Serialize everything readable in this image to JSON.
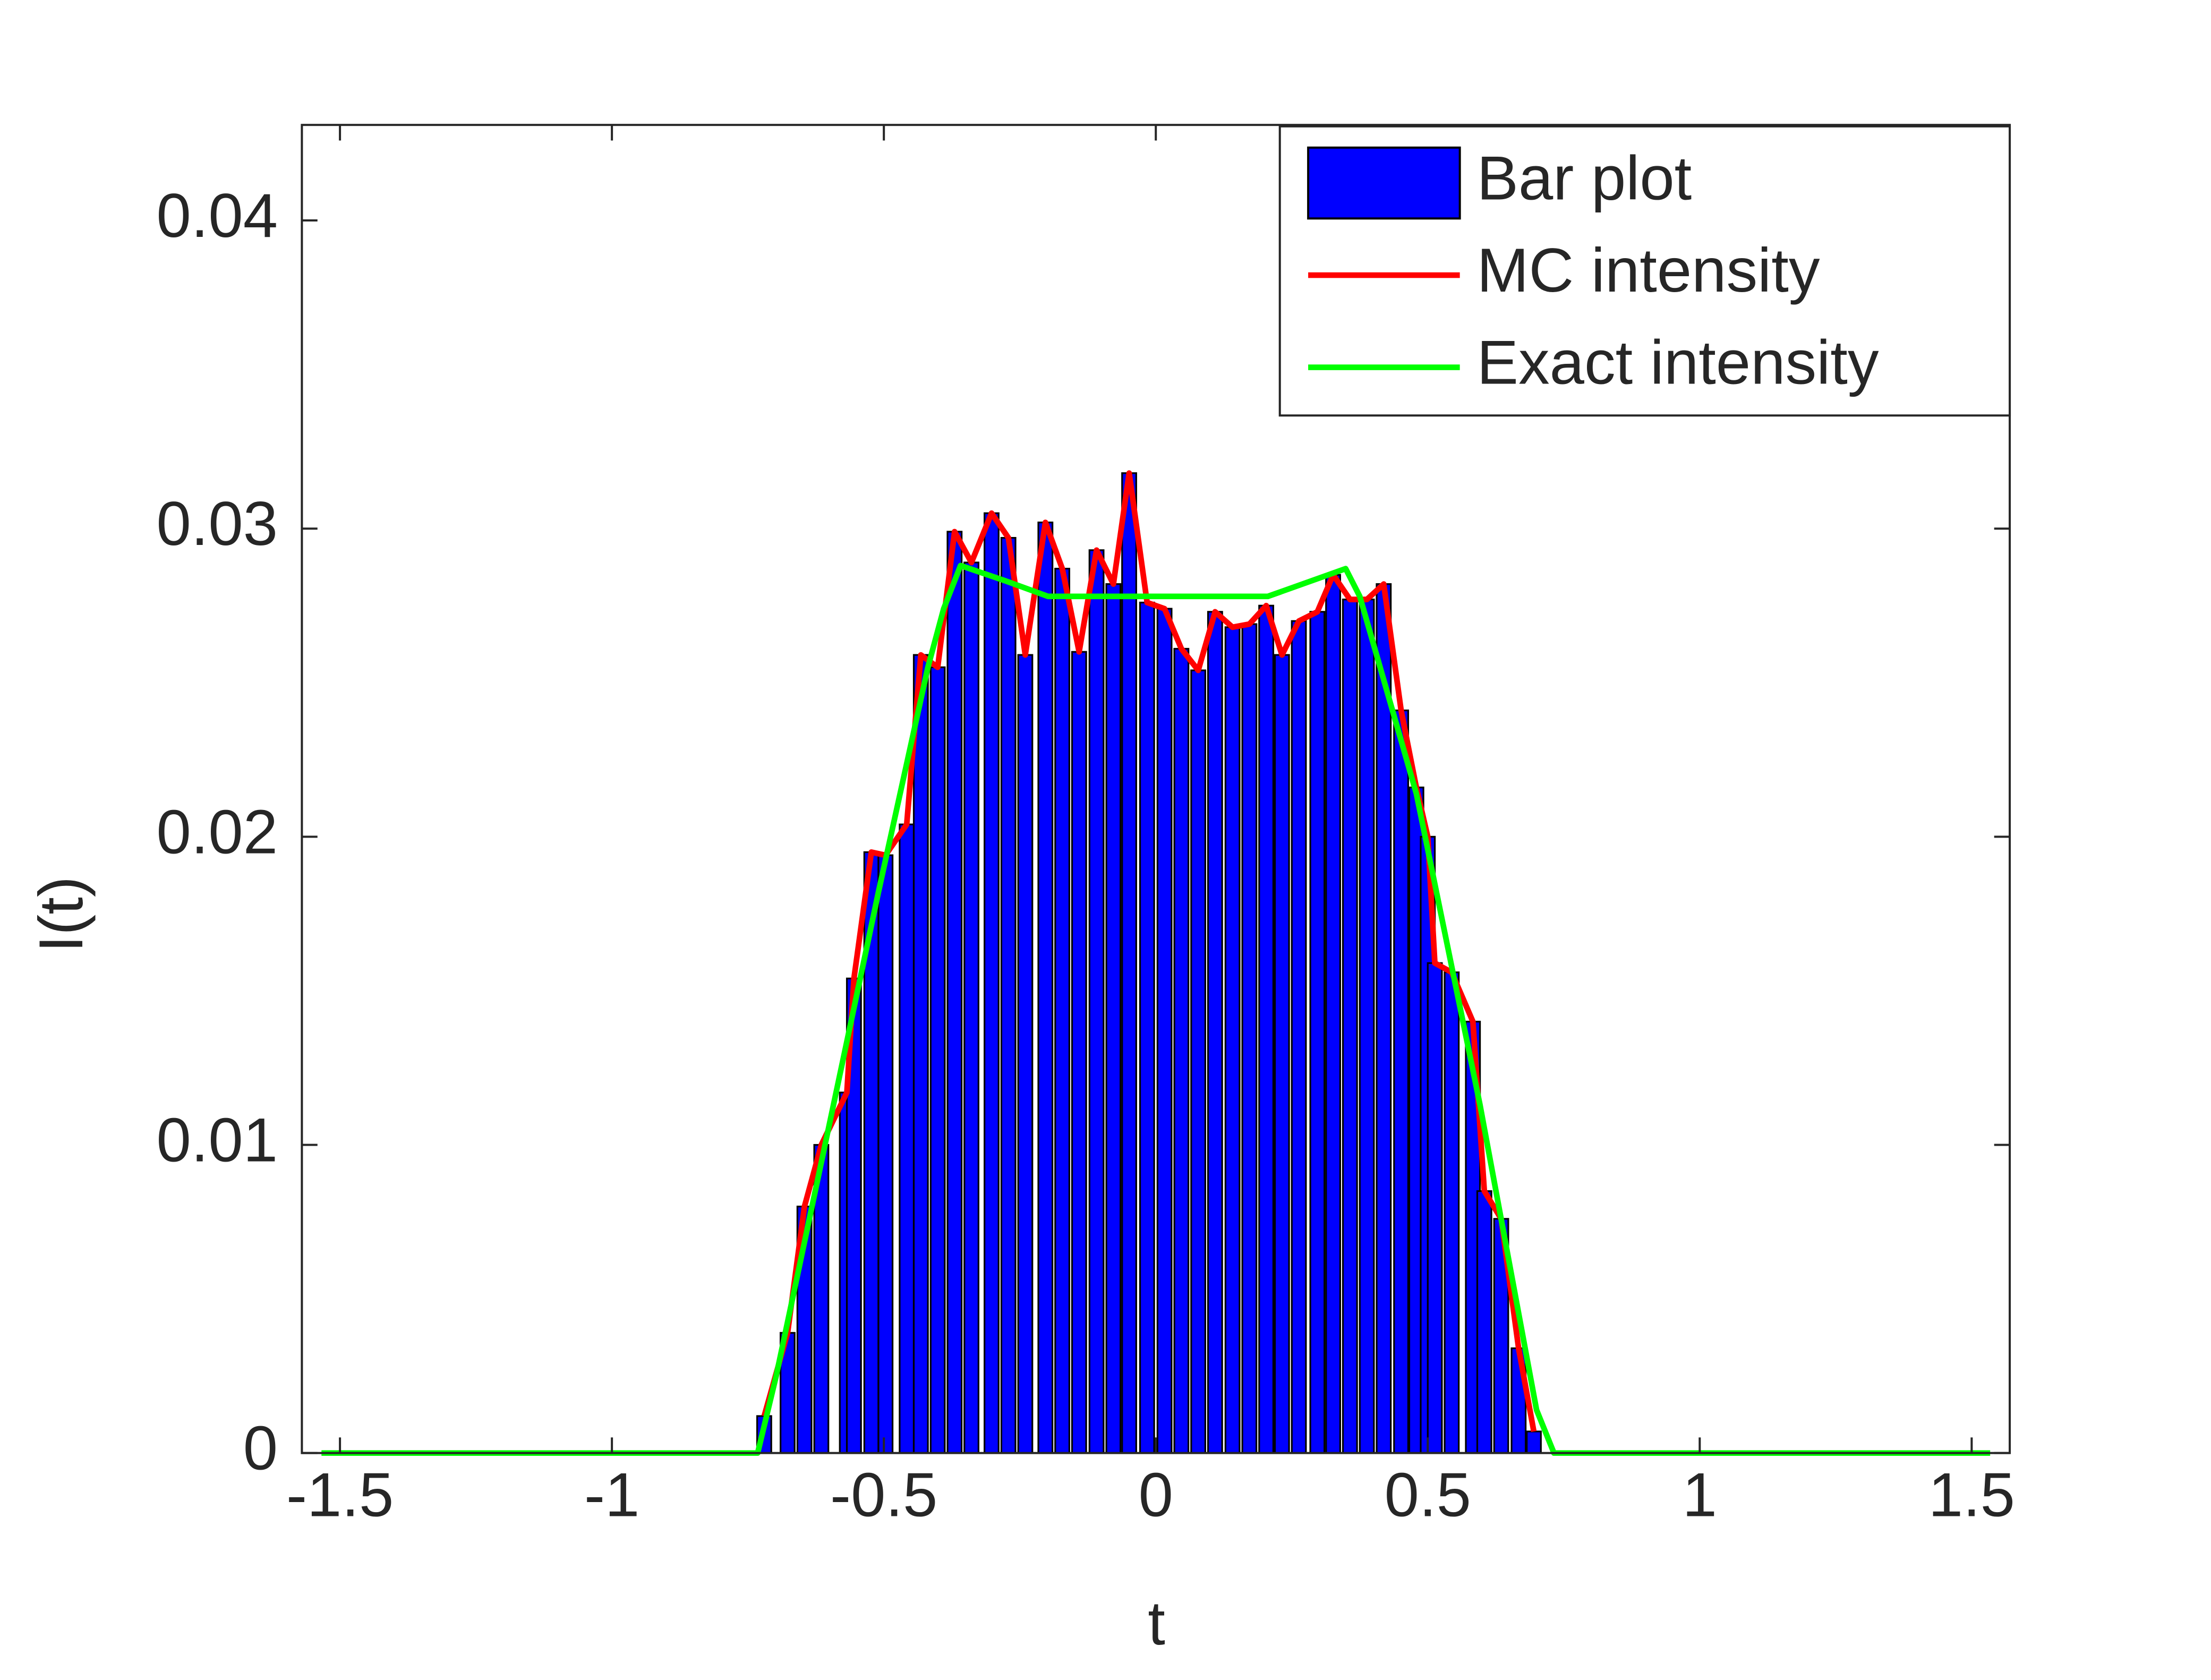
{
  "chart_data": {
    "type": "bar",
    "x_label": "t",
    "y_label": "I(t)",
    "xlim": [
      -1.57,
      1.57
    ],
    "ylim": [
      0,
      0.0431
    ],
    "xticks": [
      -1.5,
      -1,
      -0.5,
      0,
      0.5,
      1,
      1.5
    ],
    "yticks": [
      0,
      0.01,
      0.02,
      0.03,
      0.04
    ],
    "legend": "upper right",
    "series": [
      {
        "name": "Bar plot",
        "type": "bar",
        "color": "#0000ff",
        "x": [
          -0.72,
          -0.677,
          -0.646,
          -0.615,
          -0.568,
          -0.555,
          -0.523,
          -0.497,
          -0.458,
          -0.432,
          -0.401,
          -0.37,
          -0.339,
          -0.302,
          -0.271,
          -0.24,
          -0.203,
          -0.172,
          -0.141,
          -0.109,
          -0.078,
          -0.049,
          -0.016,
          0.016,
          0.047,
          0.078,
          0.109,
          0.141,
          0.172,
          0.203,
          0.232,
          0.263,
          0.297,
          0.326,
          0.357,
          0.388,
          0.419,
          0.451,
          0.479,
          0.5,
          0.513,
          0.544,
          0.583,
          0.604,
          0.635,
          0.667,
          0.695
        ],
        "values": [
          0.0012,
          0.0039,
          0.008,
          0.01,
          0.0117,
          0.0154,
          0.0195,
          0.0194,
          0.0204,
          0.0259,
          0.0255,
          0.0299,
          0.0289,
          0.0305,
          0.0297,
          0.0259,
          0.0302,
          0.0287,
          0.026,
          0.0293,
          0.0282,
          0.0318,
          0.0276,
          0.0274,
          0.0261,
          0.0254,
          0.0273,
          0.0268,
          0.0269,
          0.0275,
          0.0259,
          0.027,
          0.0273,
          0.0285,
          0.0277,
          0.0277,
          0.0282,
          0.0241,
          0.0216,
          0.02,
          0.0159,
          0.0156,
          0.014,
          0.0085,
          0.0076,
          0.0034,
          0.0007
        ]
      },
      {
        "name": "MC intensity",
        "type": "line",
        "color": "#ff0000",
        "x": [
          -0.72,
          -0.677,
          -0.646,
          -0.615,
          -0.568,
          -0.555,
          -0.523,
          -0.497,
          -0.458,
          -0.432,
          -0.401,
          -0.37,
          -0.339,
          -0.302,
          -0.271,
          -0.24,
          -0.203,
          -0.172,
          -0.141,
          -0.109,
          -0.078,
          -0.049,
          -0.016,
          0.016,
          0.047,
          0.078,
          0.109,
          0.141,
          0.172,
          0.203,
          0.232,
          0.263,
          0.297,
          0.326,
          0.357,
          0.388,
          0.419,
          0.451,
          0.479,
          0.5,
          0.513,
          0.544,
          0.583,
          0.604,
          0.635,
          0.667,
          0.695
        ],
        "values": [
          0.0012,
          0.0039,
          0.008,
          0.01,
          0.0117,
          0.0154,
          0.0195,
          0.0194,
          0.0204,
          0.0259,
          0.0255,
          0.0299,
          0.0289,
          0.0305,
          0.0297,
          0.0259,
          0.0302,
          0.0287,
          0.026,
          0.0293,
          0.0282,
          0.0318,
          0.0276,
          0.0274,
          0.0261,
          0.0254,
          0.0273,
          0.0268,
          0.0269,
          0.0275,
          0.0259,
          0.027,
          0.0273,
          0.0285,
          0.0277,
          0.0277,
          0.0282,
          0.0241,
          0.0216,
          0.02,
          0.0159,
          0.0156,
          0.014,
          0.0085,
          0.0076,
          0.0034,
          0.0007
        ]
      },
      {
        "name": "Exact intensity",
        "type": "line",
        "color": "#00ff00",
        "x": [
          -1.534,
          -0.732,
          -0.698,
          -0.51,
          -0.419,
          -0.39,
          -0.359,
          -0.276,
          -0.198,
          0.206,
          0.349,
          0.375,
          0.479,
          0.596,
          0.7,
          0.732,
          1.534
        ],
        "values": [
          0,
          0,
          0.0025,
          0.0182,
          0.0255,
          0.0274,
          0.0288,
          0.0283,
          0.0278,
          0.0278,
          0.0287,
          0.0278,
          0.0214,
          0.0113,
          0.0014,
          0,
          0
        ]
      }
    ]
  }
}
